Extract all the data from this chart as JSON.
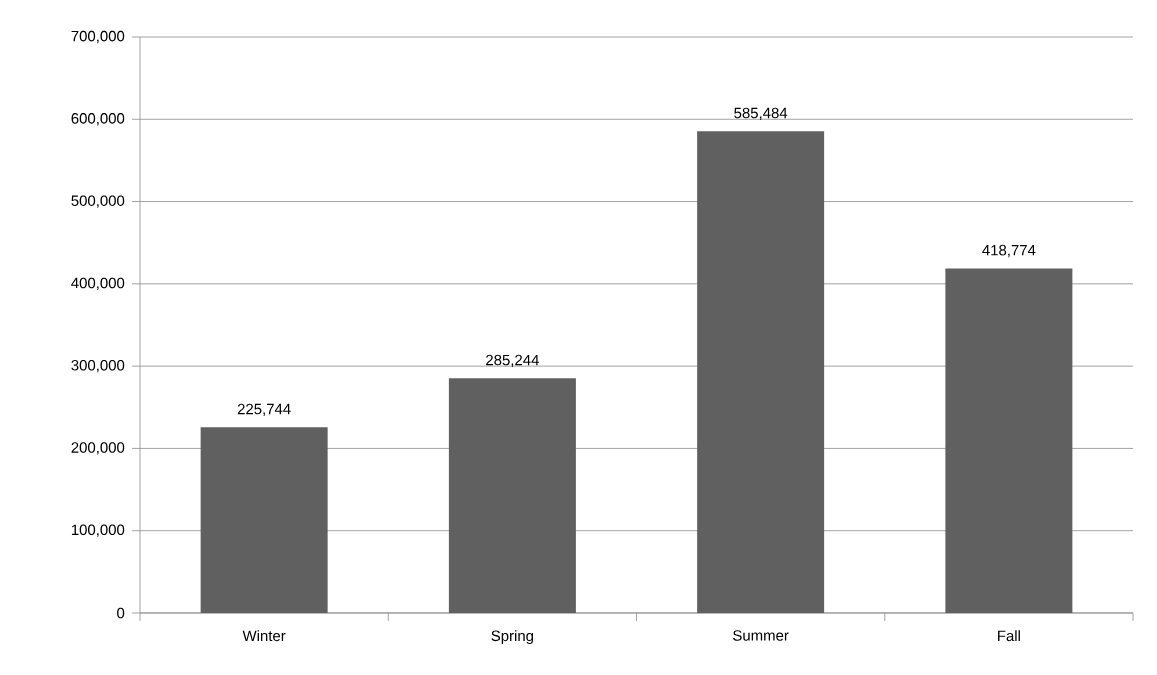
{
  "chart_data": {
    "type": "bar",
    "categories": [
      "Winter",
      "Spring",
      "Summer",
      "Fall"
    ],
    "values": [
      225744,
      285244,
      585484,
      418774
    ],
    "value_labels": [
      "225,744",
      "285,244",
      "585,484",
      "418,774"
    ],
    "color": "#606060",
    "ylim": [
      0,
      700000
    ],
    "yticks": [
      {
        "value": 0,
        "label": "0"
      },
      {
        "value": 100000,
        "label": "100,000"
      },
      {
        "value": 200000,
        "label": "200,000"
      },
      {
        "value": 300000,
        "label": "300,000"
      },
      {
        "value": 400000,
        "label": "400,000"
      },
      {
        "value": 500000,
        "label": "500,000"
      },
      {
        "value": 600000,
        "label": "600,000"
      },
      {
        "value": 700000,
        "label": "700,000"
      }
    ],
    "grid": "y"
  }
}
